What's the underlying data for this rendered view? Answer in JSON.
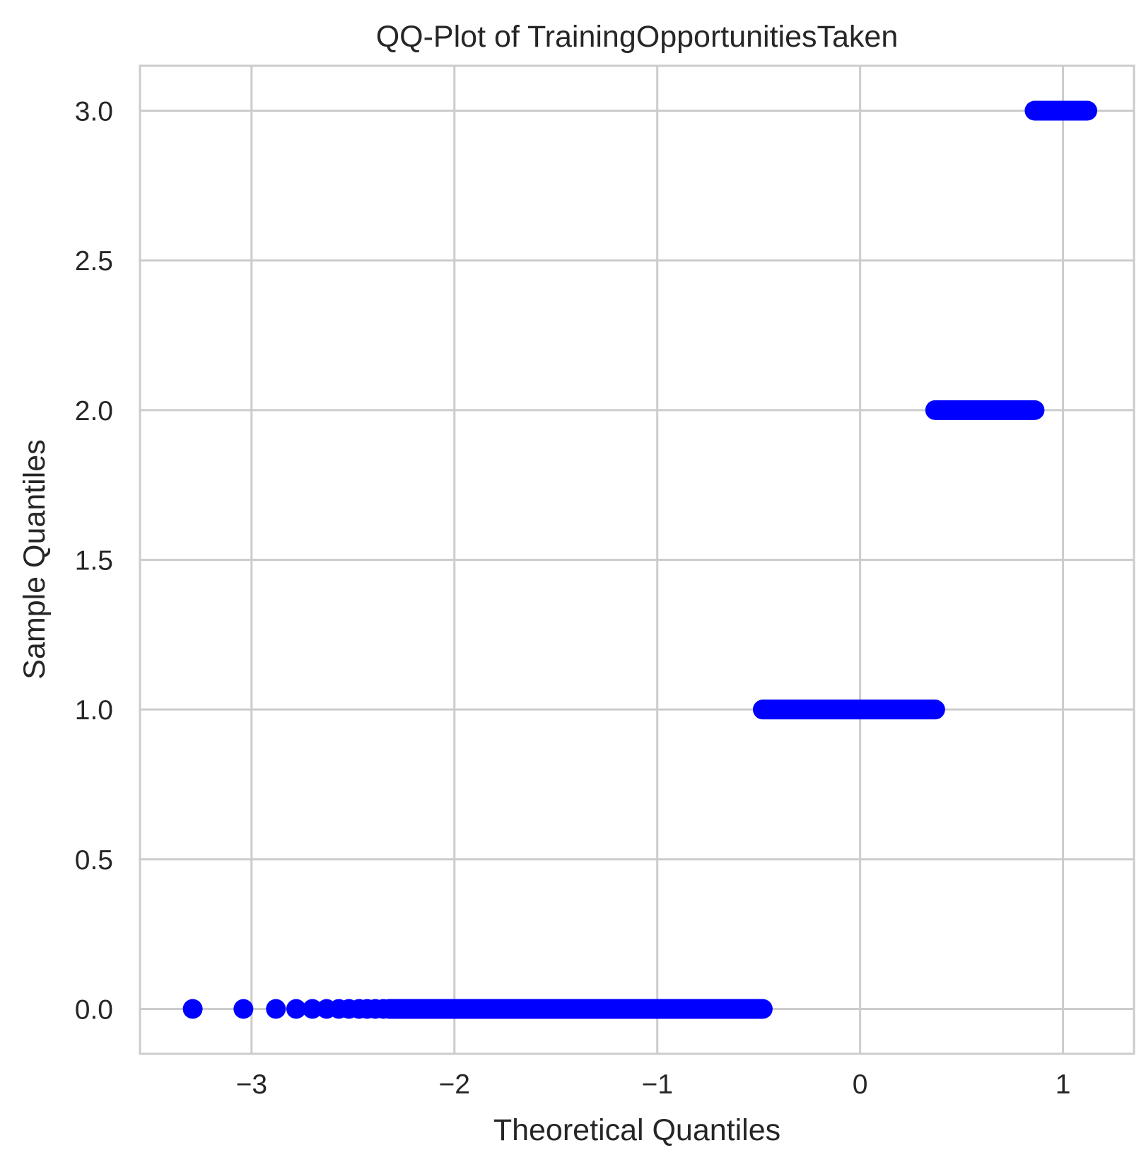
{
  "chart_data": {
    "type": "scatter",
    "title": "QQ-Plot of TrainingOpportunitiesTaken",
    "xlabel": "Theoretical Quantiles",
    "ylabel": "Sample Quantiles",
    "xlim": [
      -3.55,
      1.35
    ],
    "ylim": [
      -0.15,
      3.15
    ],
    "x_ticks": [
      -3,
      -2,
      -1,
      0,
      1
    ],
    "x_tick_labels": [
      "−3",
      "−2",
      "−1",
      "0",
      "1"
    ],
    "y_ticks": [
      0.0,
      0.5,
      1.0,
      1.5,
      2.0,
      2.5,
      3.0
    ],
    "y_tick_labels": [
      "0.0",
      "0.5",
      "1.0",
      "1.5",
      "2.0",
      "2.5",
      "3.0"
    ],
    "grid": true,
    "marker_color": "#0000ff",
    "series": [
      {
        "points": [
          {
            "x": -3.29,
            "y": 0
          },
          {
            "x": -3.04,
            "y": 0
          },
          {
            "x": -2.88,
            "y": 0
          },
          {
            "x": -2.78,
            "y": 0
          },
          {
            "x": -2.7,
            "y": 0
          },
          {
            "x": -2.63,
            "y": 0
          },
          {
            "x": -2.57,
            "y": 0
          },
          {
            "x": -2.52,
            "y": 0
          },
          {
            "x": -2.47,
            "y": 0
          },
          {
            "x": -2.43,
            "y": 0
          },
          {
            "x": -2.39,
            "y": 0
          },
          {
            "x": -2.35,
            "y": 0
          },
          {
            "x": -2.32,
            "y": 0
          }
        ],
        "ranges": [
          {
            "x_start": -2.32,
            "x_end": -0.48,
            "y": 0
          },
          {
            "x_start": -0.48,
            "x_end": 0.37,
            "y": 1
          },
          {
            "x_start": 0.37,
            "x_end": 0.86,
            "y": 2
          },
          {
            "x_start": 0.86,
            "x_end": 1.12,
            "y": 3
          }
        ]
      }
    ]
  }
}
